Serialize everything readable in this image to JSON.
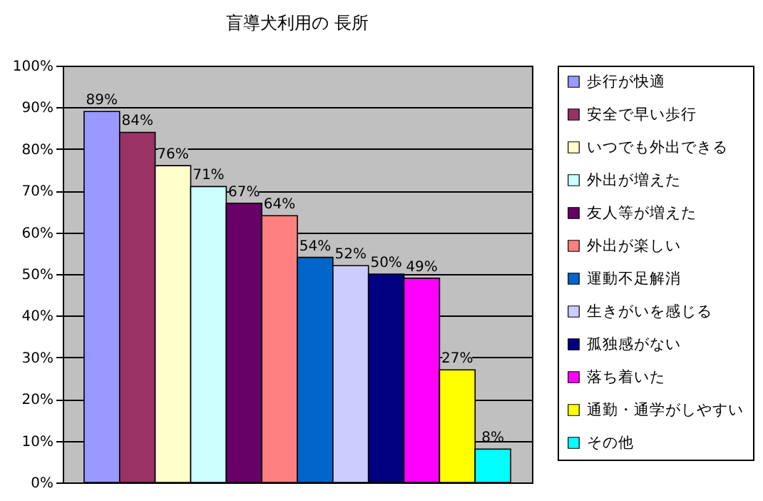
{
  "chart_data": {
    "type": "bar",
    "title": "盲導犬利用の 長所",
    "categories": [
      null
    ],
    "series": [
      {
        "name": "歩行が快適",
        "color": "#9999ff",
        "values": [
          89
        ],
        "value_labels": [
          "89%"
        ]
      },
      {
        "name": "安全で早い歩行",
        "color": "#993366",
        "values": [
          84
        ],
        "value_labels": [
          "84%"
        ]
      },
      {
        "name": "いつでも外出できる",
        "color": "#ffffcc",
        "values": [
          76
        ],
        "value_labels": [
          "76%"
        ]
      },
      {
        "name": "外出が増えた",
        "color": "#ccffff",
        "values": [
          71
        ],
        "value_labels": [
          "71%"
        ]
      },
      {
        "name": "友人等が増えた",
        "color": "#660066",
        "values": [
          67
        ],
        "value_labels": [
          "67%"
        ]
      },
      {
        "name": "外出が楽しい",
        "color": "#ff8080",
        "values": [
          64
        ],
        "value_labels": [
          "64%"
        ]
      },
      {
        "name": "運動不足解消",
        "color": "#0066cc",
        "values": [
          54
        ],
        "value_labels": [
          "54%"
        ]
      },
      {
        "name": "生きがいを感じる",
        "color": "#ccccff",
        "values": [
          52
        ],
        "value_labels": [
          "52%"
        ]
      },
      {
        "name": "孤独感がない",
        "color": "#000080",
        "values": [
          50
        ],
        "value_labels": [
          "50%"
        ]
      },
      {
        "name": "落ち着いた",
        "color": "#ff00ff",
        "values": [
          49
        ],
        "value_labels": [
          "49%"
        ]
      },
      {
        "name": "通勤・通学がしやすい",
        "color": "#ffff00",
        "values": [
          27
        ],
        "value_labels": [
          "27%"
        ]
      },
      {
        "name": "その他",
        "color": "#00ffff",
        "values": [
          8
        ],
        "value_labels": [
          "8%"
        ]
      }
    ],
    "ylim": [
      0,
      100
    ],
    "yticks": [
      {
        "value": 0,
        "label": "0%"
      },
      {
        "value": 10,
        "label": "10%"
      },
      {
        "value": 20,
        "label": "20%"
      },
      {
        "value": 30,
        "label": "30%"
      },
      {
        "value": 40,
        "label": "40%"
      },
      {
        "value": 50,
        "label": "50%"
      },
      {
        "value": 60,
        "label": "60%"
      },
      {
        "value": 70,
        "label": "70%"
      },
      {
        "value": 80,
        "label": "80%"
      },
      {
        "value": 90,
        "label": "90%"
      },
      {
        "value": 100,
        "label": "100%"
      }
    ],
    "grid": "y",
    "legend": "right",
    "tick_labels": "y"
  }
}
